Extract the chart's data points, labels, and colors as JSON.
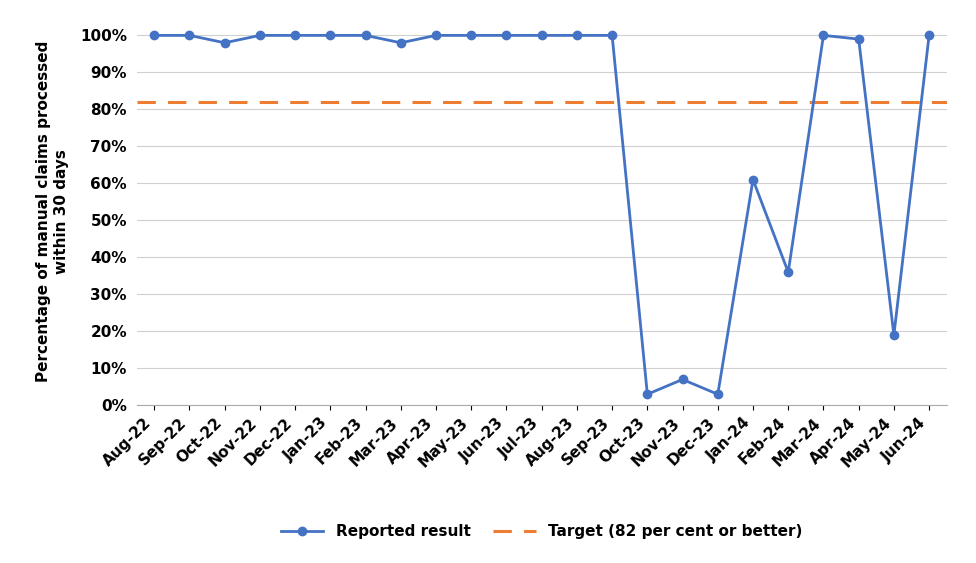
{
  "labels": [
    "Aug-22",
    "Sep-22",
    "Oct-22",
    "Nov-22",
    "Dec-22",
    "Jan-23",
    "Feb-23",
    "Mar-23",
    "Apr-23",
    "May-23",
    "Jun-23",
    "Jul-23",
    "Aug-23",
    "Sep-23",
    "Oct-23",
    "Nov-23",
    "Dec-23",
    "Jan-24",
    "Feb-24",
    "Mar-24",
    "Apr-24",
    "May-24",
    "Jun-24"
  ],
  "values": [
    100,
    100,
    98,
    100,
    100,
    100,
    100,
    98,
    100,
    100,
    100,
    100,
    100,
    100,
    3,
    7,
    3,
    61,
    36,
    100,
    99,
    19,
    100
  ],
  "target": 82,
  "line_color": "#4472C4",
  "target_color": "#ED7D31",
  "ylabel_line1": "Percentage of manual claims processed",
  "ylabel_line2": "within 30 days",
  "ylim": [
    0,
    105
  ],
  "yticks": [
    0,
    10,
    20,
    30,
    40,
    50,
    60,
    70,
    80,
    90,
    100
  ],
  "legend_reported": "Reported result",
  "legend_target": "Target (82 per cent or better)",
  "background_color": "#ffffff",
  "grid_color": "#d0d0d0",
  "marker_size": 6,
  "line_width": 2,
  "ylabel_fontsize": 11,
  "tick_fontsize": 11,
  "legend_fontsize": 11
}
